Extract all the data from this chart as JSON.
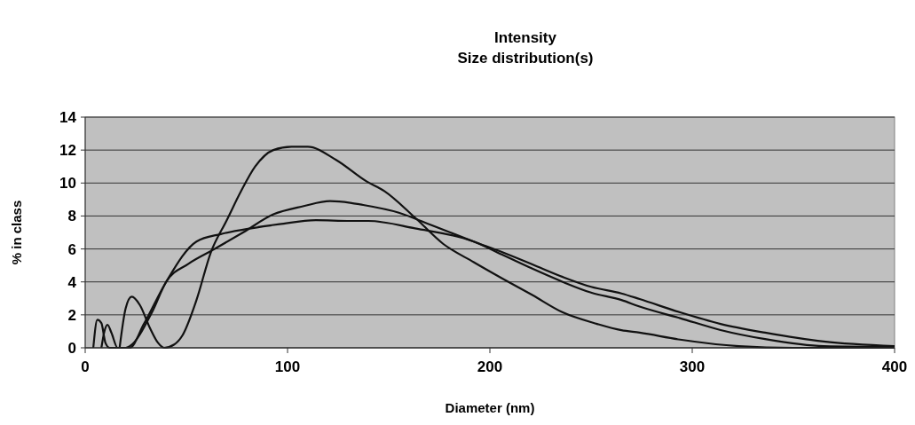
{
  "chart_data": {
    "type": "line",
    "title": "Intensity",
    "subtitle": "Size distribution(s)",
    "xlabel": "Diameter (nm)",
    "ylabel": "% in class",
    "xlim": [
      0,
      400
    ],
    "xticks": [
      0,
      100,
      200,
      300,
      400
    ],
    "ylim": [
      0,
      14
    ],
    "yticks": [
      0,
      2,
      4,
      6,
      8,
      10,
      12,
      14
    ],
    "grid": "y",
    "marker": "none",
    "line_style": "solid",
    "series": [
      {
        "color": "#111111",
        "x": [
          17,
          20,
          23,
          27,
          32,
          36,
          39,
          44,
          48,
          55,
          62,
          70,
          77,
          84,
          93,
          102,
          110,
          124,
          139,
          148,
          163,
          177,
          192,
          207,
          221,
          236,
          253,
          265,
          274,
          294,
          323,
          350,
          400
        ],
        "values": [
          0,
          2.4,
          3.1,
          2.6,
          1.2,
          0.3,
          0,
          0.2,
          0.74,
          2.9,
          5.76,
          7.75,
          9.5,
          11,
          12,
          12.2,
          12.2,
          11.4,
          10.1,
          9.5,
          7.9,
          6.3,
          5.2,
          4.15,
          3.2,
          2.15,
          1.45,
          1.07,
          0.92,
          0.5,
          0.1,
          0,
          0
        ]
      },
      {
        "color": "#111111",
        "x": [
          4,
          6,
          8,
          10,
          12,
          20,
          22,
          33,
          40,
          51,
          64,
          78,
          93,
          108,
          121,
          131,
          136,
          155,
          170,
          192,
          207,
          221,
          236,
          250,
          265,
          274,
          294,
          314,
          336,
          365,
          400
        ],
        "values": [
          0,
          1.7,
          1.5,
          0.3,
          0,
          0,
          0.1,
          2.15,
          4,
          5.1,
          6,
          7,
          8.1,
          8.6,
          8.9,
          8.8,
          8.7,
          8.2,
          7.5,
          6.45,
          5.76,
          5.06,
          4.3,
          3.7,
          3.3,
          2.96,
          2.15,
          1.45,
          0.92,
          0.38,
          0.1
        ]
      },
      {
        "color": "#111111",
        "x": [
          8,
          9.5,
          11,
          13,
          16,
          22,
          29,
          40,
          55,
          67,
          82,
          96,
          114,
          131,
          140,
          163,
          192,
          207,
          221,
          236,
          250,
          265,
          274,
          294,
          314,
          336,
          365,
          400
        ],
        "values": [
          0,
          1,
          1.4,
          0.9,
          0,
          0,
          1.45,
          4,
          6.45,
          6.9,
          7.25,
          7.5,
          7.75,
          7.7,
          7.7,
          7.25,
          6.45,
          5.6,
          4.8,
          4,
          3.35,
          2.9,
          2.5,
          1.8,
          1.08,
          0.53,
          0.1,
          0.05
        ]
      }
    ]
  }
}
